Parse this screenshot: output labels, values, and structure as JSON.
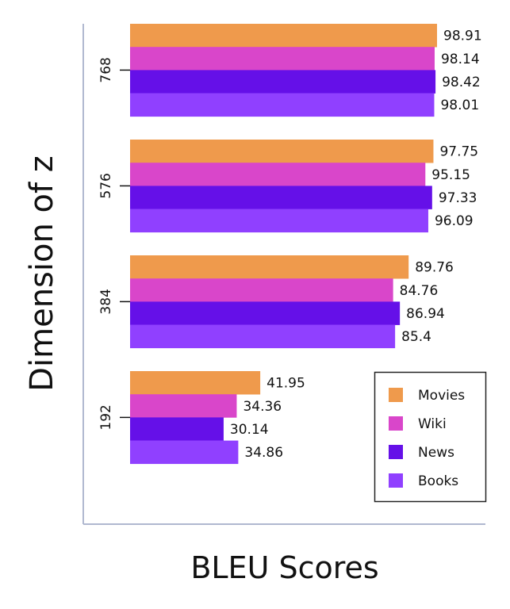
{
  "chart_data": {
    "type": "bar",
    "orientation": "horizontal",
    "title": "",
    "xlabel": "BLEU Scores",
    "ylabel": "Dimension of z",
    "categories": [
      "768",
      "576",
      "384",
      "192"
    ],
    "series": [
      {
        "name": "Movies",
        "color": "#EF9A4C",
        "values": [
          98.91,
          97.75,
          89.76,
          41.95
        ]
      },
      {
        "name": "Wiki",
        "color": "#D946CA",
        "values": [
          98.14,
          95.15,
          84.76,
          34.36
        ]
      },
      {
        "name": "News",
        "color": "#6510E8",
        "values": [
          98.42,
          97.33,
          86.94,
          30.14
        ]
      },
      {
        "name": "Books",
        "color": "#9040FF",
        "values": [
          98.01,
          96.09,
          85.4,
          34.86
        ]
      }
    ],
    "data_labels": [
      [
        "98.91",
        "98.14",
        "98.42",
        "98.01"
      ],
      [
        "97.75",
        "95.15",
        "97.33",
        "96.09"
      ],
      [
        "89.76",
        "84.76",
        "86.94",
        "85.4"
      ],
      [
        "41.95",
        "34.36",
        "30.14",
        "34.86"
      ]
    ],
    "xlim": [
      0,
      100
    ],
    "grid": false,
    "legend_position": "bottom-right",
    "axis_color": "#B0B8D0"
  }
}
